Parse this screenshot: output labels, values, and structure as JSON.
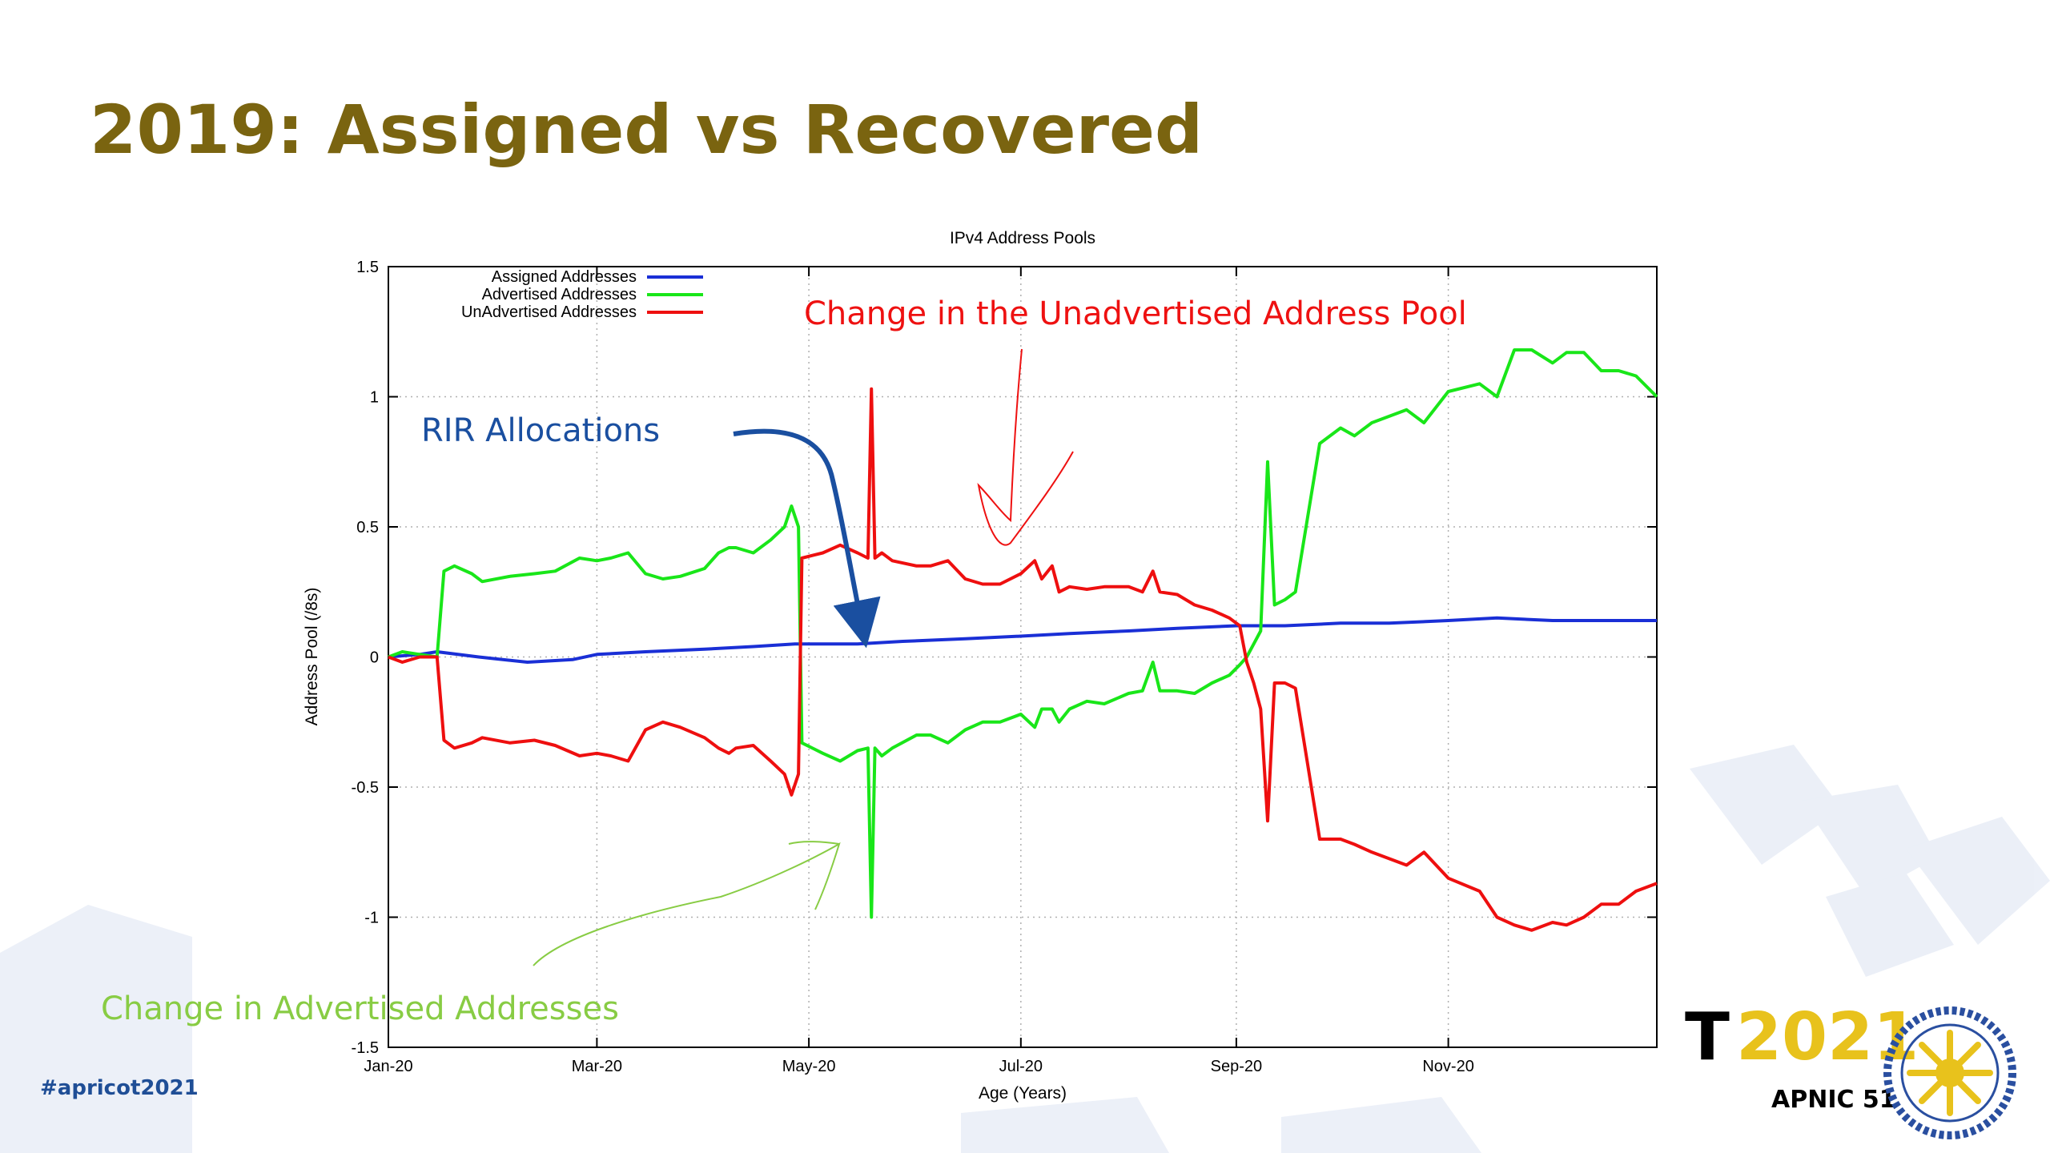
{
  "slide": {
    "title": "2019: Assigned vs Recovered",
    "title_color": "#7a6410",
    "hashtag": "#apricot2021",
    "hashtag_color": "#1f4e96"
  },
  "logo": {
    "t_letter": "T",
    "year": "2021",
    "subtitle": "APNIC 51",
    "year_color": "#e8c21c",
    "icon": "sun-seal-icon"
  },
  "annotations": {
    "unadvertised": {
      "text": "Change in the Unadvertised Address Pool",
      "color": "#ee1111"
    },
    "rir": {
      "text": "RIR Allocations",
      "color": "#1a4fa0"
    },
    "advertised": {
      "text": "Change in Advertised Addresses",
      "color": "#88cc44"
    }
  },
  "chart_data": {
    "type": "line",
    "title": "IPv4 Address Pools",
    "xlabel": "Age (Years)",
    "ylabel": "Address Pool (/8s)",
    "ylim": [
      -1.5,
      1.5
    ],
    "yticks": [
      1.5,
      1,
      0.5,
      0,
      -0.5,
      -1,
      -1.5
    ],
    "ytick_labels": [
      "1.5",
      "1",
      "0.5",
      "0",
      "-0.5",
      "-1",
      "-1.5"
    ],
    "xlim": [
      "2020-01-01",
      "2020-12-31"
    ],
    "xticks": [
      "2020-01-01",
      "2020-03-01",
      "2020-05-01",
      "2020-07-01",
      "2020-09-01",
      "2020-11-01"
    ],
    "xtick_labels": [
      "Jan-20",
      "Mar-20",
      "May-20",
      "Jul-20",
      "Sep-20",
      "Nov-20"
    ],
    "grid": true,
    "legend_position": "top-left",
    "series": [
      {
        "name": "Assigned Addresses",
        "color": "#1a2fd6",
        "x": [
          "2020-01-01",
          "2020-01-10",
          "2020-01-15",
          "2020-01-27",
          "2020-02-10",
          "2020-02-23",
          "2020-03-01",
          "2020-03-15",
          "2020-04-01",
          "2020-04-15",
          "2020-04-27",
          "2020-05-15",
          "2020-05-28",
          "2020-06-15",
          "2020-07-01",
          "2020-07-15",
          "2020-08-01",
          "2020-08-15",
          "2020-09-01",
          "2020-09-15",
          "2020-10-01",
          "2020-10-15",
          "2020-11-01",
          "2020-11-15",
          "2020-12-01",
          "2020-12-10",
          "2020-12-31"
        ],
        "values": [
          0.0,
          0.01,
          0.02,
          0.0,
          -0.02,
          -0.01,
          0.01,
          0.02,
          0.03,
          0.04,
          0.05,
          0.05,
          0.06,
          0.07,
          0.08,
          0.09,
          0.1,
          0.11,
          0.12,
          0.12,
          0.13,
          0.13,
          0.14,
          0.15,
          0.14,
          0.14,
          0.14
        ]
      },
      {
        "name": "Advertised Addresses",
        "color": "#19e619",
        "x": [
          "2020-01-01",
          "2020-01-05",
          "2020-01-10",
          "2020-01-15",
          "2020-01-17",
          "2020-01-20",
          "2020-01-25",
          "2020-01-28",
          "2020-02-05",
          "2020-02-12",
          "2020-02-18",
          "2020-02-25",
          "2020-03-01",
          "2020-03-05",
          "2020-03-10",
          "2020-03-15",
          "2020-03-20",
          "2020-03-25",
          "2020-04-01",
          "2020-04-05",
          "2020-04-08",
          "2020-04-10",
          "2020-04-15",
          "2020-04-20",
          "2020-04-24",
          "2020-04-26",
          "2020-04-28",
          "2020-04-29",
          "2020-05-05",
          "2020-05-10",
          "2020-05-15",
          "2020-05-18",
          "2020-05-19",
          "2020-05-20",
          "2020-05-22",
          "2020-05-25",
          "2020-06-01",
          "2020-06-05",
          "2020-06-10",
          "2020-06-15",
          "2020-06-20",
          "2020-06-25",
          "2020-07-01",
          "2020-07-05",
          "2020-07-07",
          "2020-07-10",
          "2020-07-12",
          "2020-07-15",
          "2020-07-20",
          "2020-07-25",
          "2020-08-01",
          "2020-08-05",
          "2020-08-08",
          "2020-08-10",
          "2020-08-15",
          "2020-08-20",
          "2020-08-25",
          "2020-08-30",
          "2020-09-02",
          "2020-09-04",
          "2020-09-06",
          "2020-09-08",
          "2020-09-10",
          "2020-09-12",
          "2020-09-15",
          "2020-09-18",
          "2020-09-25",
          "2020-10-01",
          "2020-10-05",
          "2020-10-10",
          "2020-10-20",
          "2020-10-25",
          "2020-11-01",
          "2020-11-10",
          "2020-11-15",
          "2020-11-20",
          "2020-11-25",
          "2020-12-01",
          "2020-12-05",
          "2020-12-10",
          "2020-12-15",
          "2020-12-20",
          "2020-12-25",
          "2020-12-31"
        ],
        "values": [
          0.0,
          0.02,
          0.01,
          0.0,
          0.33,
          0.35,
          0.32,
          0.29,
          0.31,
          0.32,
          0.33,
          0.38,
          0.37,
          0.38,
          0.4,
          0.32,
          0.3,
          0.31,
          0.34,
          0.4,
          0.42,
          0.42,
          0.4,
          0.45,
          0.5,
          0.58,
          0.5,
          -0.33,
          -0.37,
          -0.4,
          -0.36,
          -0.35,
          -1.0,
          -0.35,
          -0.38,
          -0.35,
          -0.3,
          -0.3,
          -0.33,
          -0.28,
          -0.25,
          -0.25,
          -0.22,
          -0.27,
          -0.2,
          -0.2,
          -0.25,
          -0.2,
          -0.17,
          -0.18,
          -0.14,
          -0.13,
          -0.02,
          -0.13,
          -0.13,
          -0.14,
          -0.1,
          -0.07,
          -0.03,
          0.0,
          0.05,
          0.1,
          0.75,
          0.2,
          0.22,
          0.25,
          0.82,
          0.88,
          0.85,
          0.9,
          0.95,
          0.9,
          1.02,
          1.05,
          1.0,
          1.18,
          1.18,
          1.13,
          1.17,
          1.17,
          1.1,
          1.1,
          1.08,
          1.0
        ]
      },
      {
        "name": "UnAdvertised Addresses",
        "color": "#ee0f0f",
        "x": [
          "2020-01-01",
          "2020-01-05",
          "2020-01-10",
          "2020-01-15",
          "2020-01-17",
          "2020-01-20",
          "2020-01-25",
          "2020-01-28",
          "2020-02-05",
          "2020-02-12",
          "2020-02-18",
          "2020-02-25",
          "2020-03-01",
          "2020-03-05",
          "2020-03-10",
          "2020-03-15",
          "2020-03-20",
          "2020-03-25",
          "2020-04-01",
          "2020-04-05",
          "2020-04-08",
          "2020-04-10",
          "2020-04-15",
          "2020-04-20",
          "2020-04-24",
          "2020-04-26",
          "2020-04-28",
          "2020-04-29",
          "2020-05-05",
          "2020-05-10",
          "2020-05-15",
          "2020-05-18",
          "2020-05-19",
          "2020-05-20",
          "2020-05-22",
          "2020-05-25",
          "2020-06-01",
          "2020-06-05",
          "2020-06-10",
          "2020-06-15",
          "2020-06-20",
          "2020-06-25",
          "2020-07-01",
          "2020-07-05",
          "2020-07-07",
          "2020-07-10",
          "2020-07-12",
          "2020-07-15",
          "2020-07-20",
          "2020-07-25",
          "2020-08-01",
          "2020-08-05",
          "2020-08-08",
          "2020-08-10",
          "2020-08-15",
          "2020-08-20",
          "2020-08-25",
          "2020-08-30",
          "2020-09-02",
          "2020-09-04",
          "2020-09-06",
          "2020-09-08",
          "2020-09-10",
          "2020-09-12",
          "2020-09-15",
          "2020-09-18",
          "2020-09-25",
          "2020-10-01",
          "2020-10-05",
          "2020-10-10",
          "2020-10-20",
          "2020-10-25",
          "2020-11-01",
          "2020-11-10",
          "2020-11-15",
          "2020-11-20",
          "2020-11-25",
          "2020-12-01",
          "2020-12-05",
          "2020-12-10",
          "2020-12-15",
          "2020-12-20",
          "2020-12-25",
          "2020-12-31"
        ],
        "values": [
          0.0,
          -0.02,
          0.0,
          0.0,
          -0.32,
          -0.35,
          -0.33,
          -0.31,
          -0.33,
          -0.32,
          -0.34,
          -0.38,
          -0.37,
          -0.38,
          -0.4,
          -0.28,
          -0.25,
          -0.27,
          -0.31,
          -0.35,
          -0.37,
          -0.35,
          -0.34,
          -0.4,
          -0.45,
          -0.53,
          -0.45,
          0.38,
          0.4,
          0.43,
          0.4,
          0.38,
          1.03,
          0.38,
          0.4,
          0.37,
          0.35,
          0.35,
          0.37,
          0.3,
          0.28,
          0.28,
          0.32,
          0.37,
          0.3,
          0.35,
          0.25,
          0.27,
          0.26,
          0.27,
          0.27,
          0.25,
          0.33,
          0.25,
          0.24,
          0.2,
          0.18,
          0.15,
          0.12,
          -0.02,
          -0.1,
          -0.2,
          -0.63,
          -0.1,
          -0.1,
          -0.12,
          -0.7,
          -0.7,
          -0.72,
          -0.75,
          -0.8,
          -0.75,
          -0.85,
          -0.9,
          -1.0,
          -1.03,
          -1.05,
          -1.02,
          -1.03,
          -1.0,
          -0.95,
          -0.95,
          -0.9,
          -0.87
        ]
      }
    ]
  }
}
